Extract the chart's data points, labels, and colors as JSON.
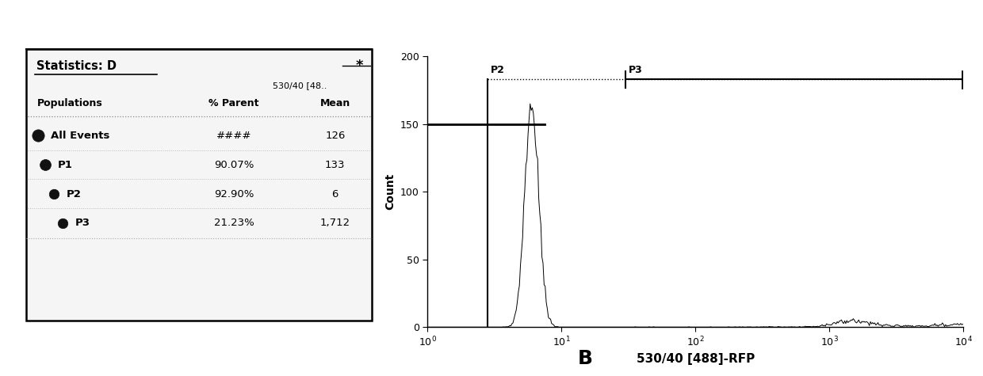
{
  "title": "B",
  "table_title": "Statistics: D",
  "col_header1": "530/40 [48..",
  "col_header2": "% Parent",
  "col_header3": "Mean",
  "rows": [
    {
      "label": "All Events",
      "pct": "####",
      "mean": "126",
      "indent": 0
    },
    {
      "label": "P1",
      "pct": "90.07%",
      "mean": "133",
      "indent": 1
    },
    {
      "label": "P2",
      "pct": "92.90%",
      "mean": "6",
      "indent": 2
    },
    {
      "label": "P3",
      "pct": "21.23%",
      "mean": "1,712",
      "indent": 3
    }
  ],
  "xlabel": "530/40 [488]-RFP",
  "ylabel": "Count",
  "ylim": [
    0,
    200
  ],
  "yticks": [
    0,
    50,
    100,
    150,
    200
  ],
  "xlim_log": [
    1,
    10000
  ],
  "xtick_vals": [
    1,
    10,
    100,
    1000,
    10000
  ],
  "gate_x_left": 2.8,
  "gate_x_p3": 30,
  "gate_y": 183,
  "threshold_y": 150,
  "bg_color": "#ffffff",
  "line_color": "#000000"
}
